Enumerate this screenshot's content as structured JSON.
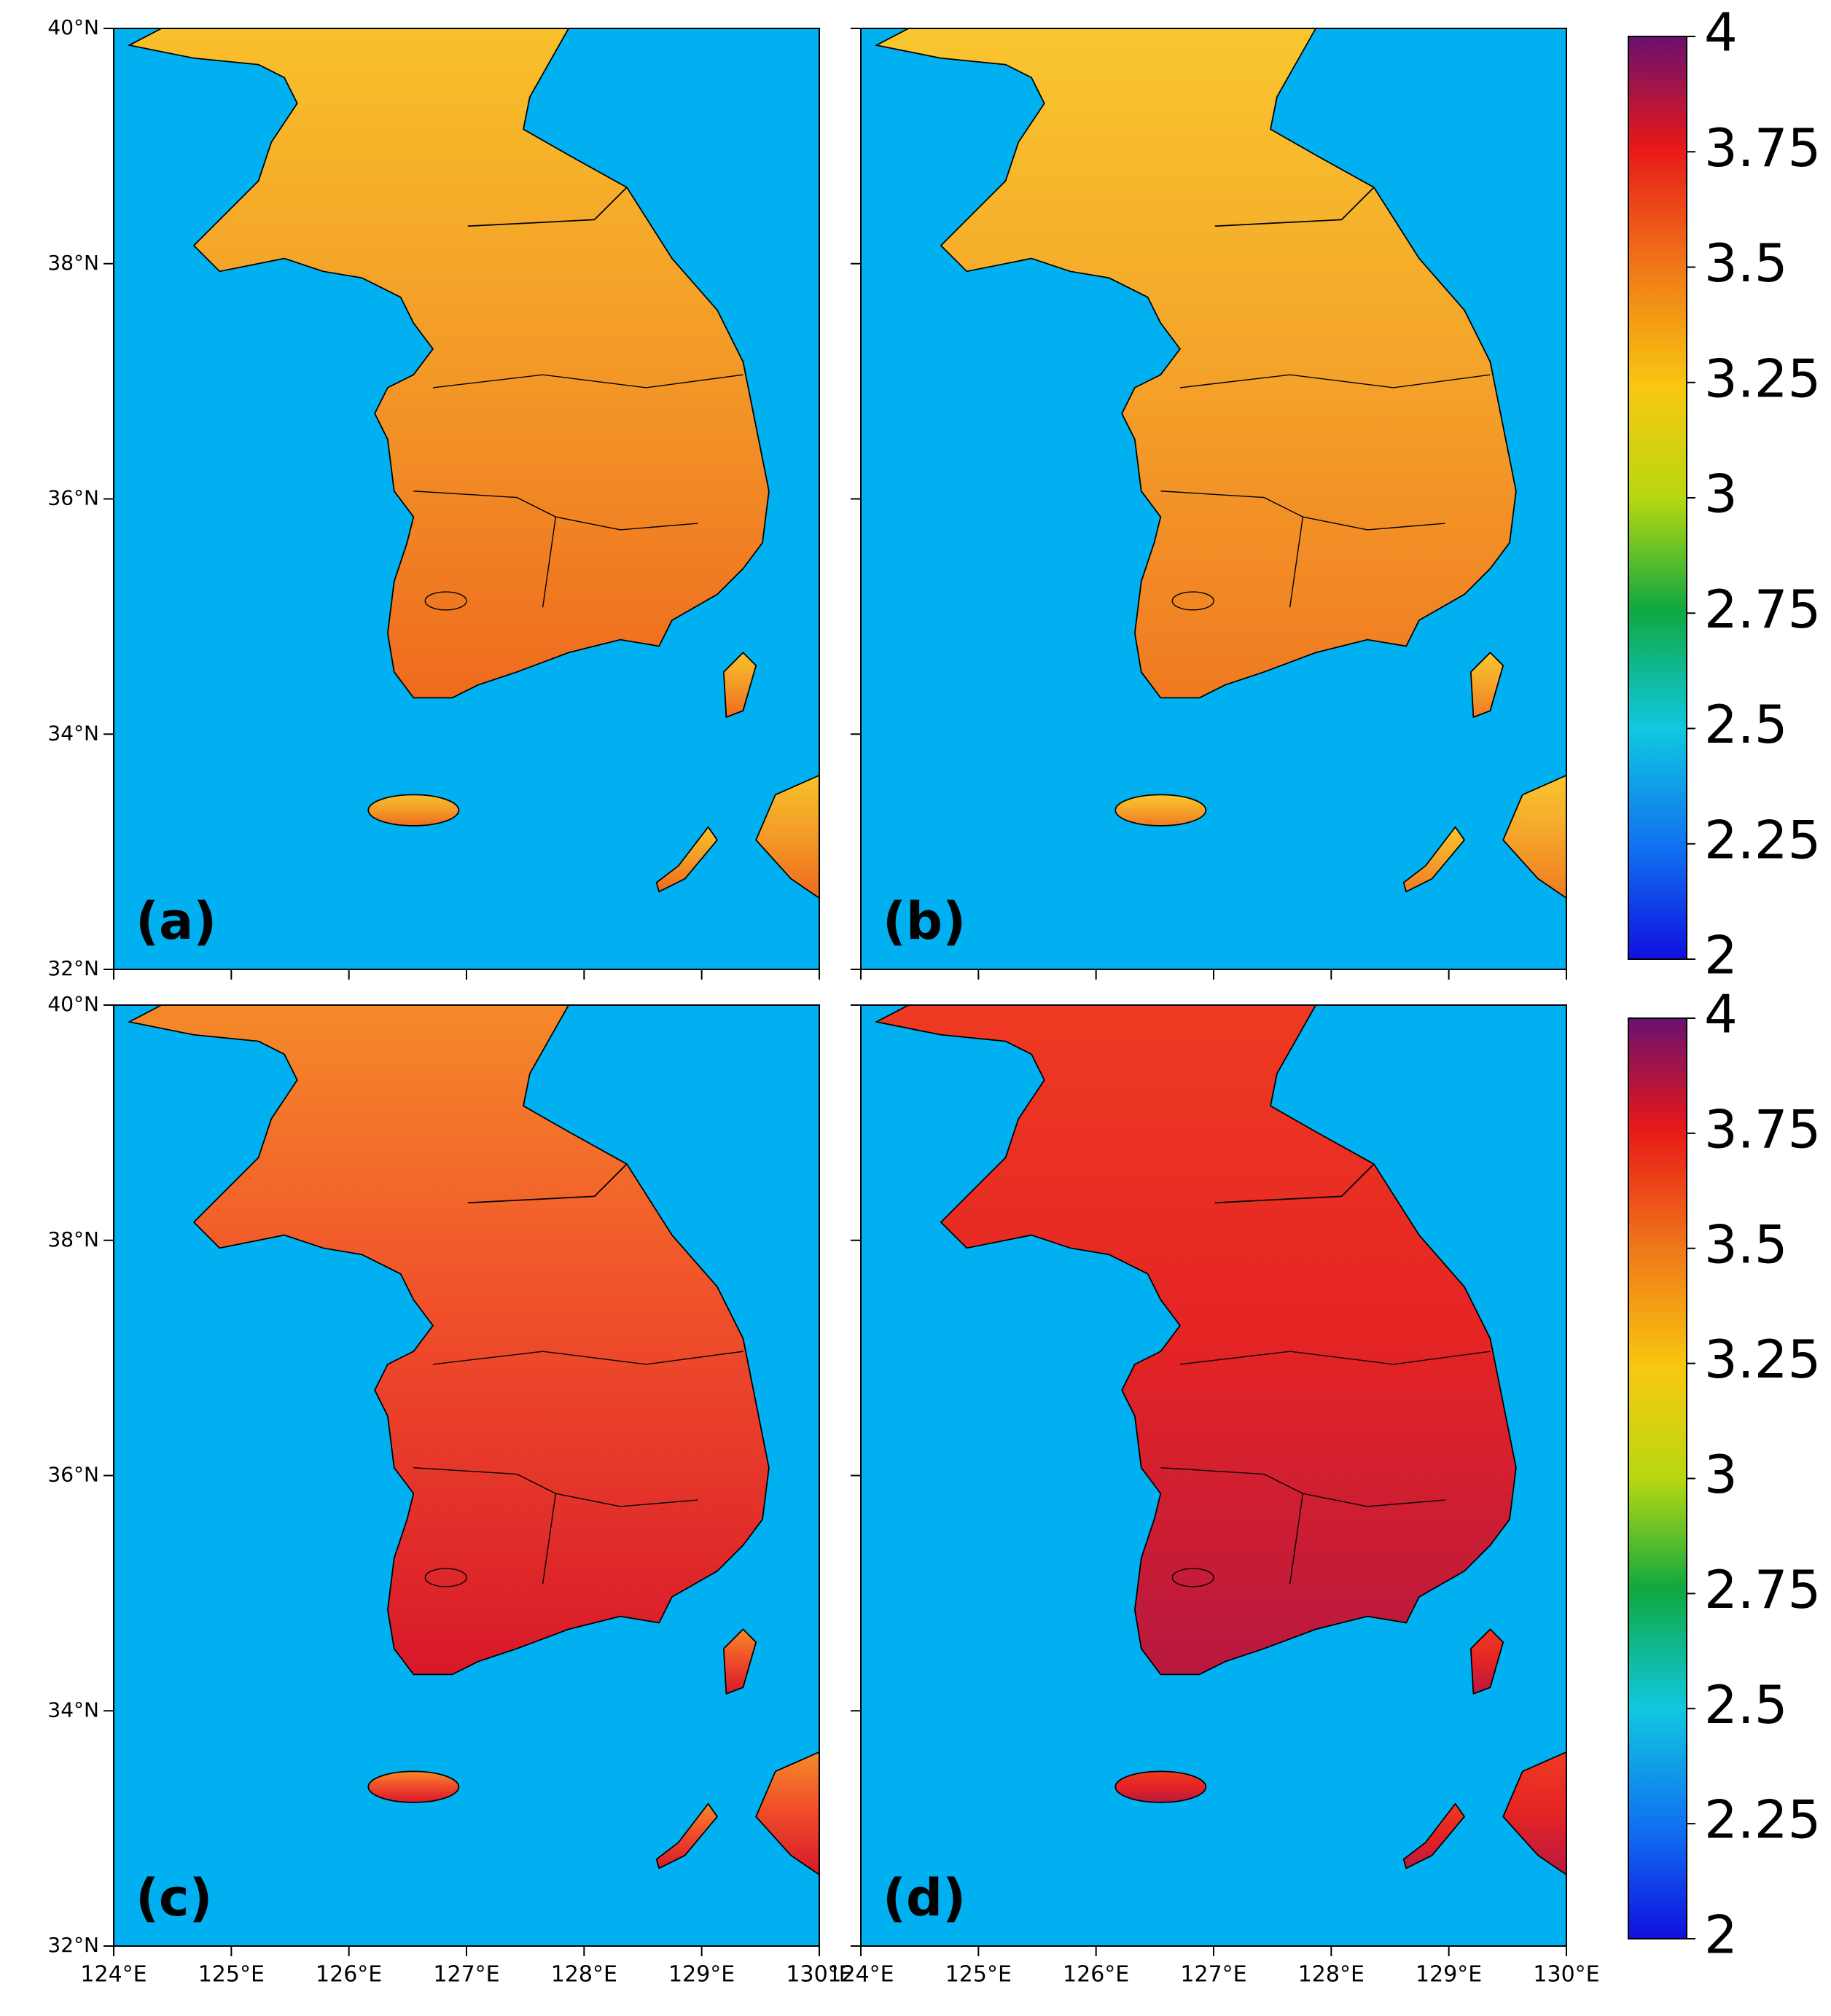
{
  "panels": [
    {
      "label": "(a)"
    },
    {
      "label": "(b)"
    },
    {
      "label": "(c)"
    },
    {
      "label": "(d)"
    }
  ],
  "latitude_ticks": [
    {
      "value": 40,
      "label": "40°N"
    },
    {
      "value": 38,
      "label": "38°N"
    },
    {
      "value": 36,
      "label": "36°N"
    },
    {
      "value": 34,
      "label": "34°N"
    },
    {
      "value": 32,
      "label": "32°N"
    }
  ],
  "longitude_ticks": [
    {
      "value": 124,
      "label": "124°E"
    },
    {
      "value": 125,
      "label": "125°E"
    },
    {
      "value": 126,
      "label": "126°E"
    },
    {
      "value": 127,
      "label": "127°E"
    },
    {
      "value": 128,
      "label": "128°E"
    },
    {
      "value": 129,
      "label": "129°E"
    },
    {
      "value": 130,
      "label": "130°E"
    }
  ],
  "colorbar": {
    "range": [
      2,
      4
    ],
    "ticks": [
      2,
      2.25,
      2.5,
      2.75,
      3,
      3.25,
      3.5,
      3.75,
      4
    ]
  }
}
